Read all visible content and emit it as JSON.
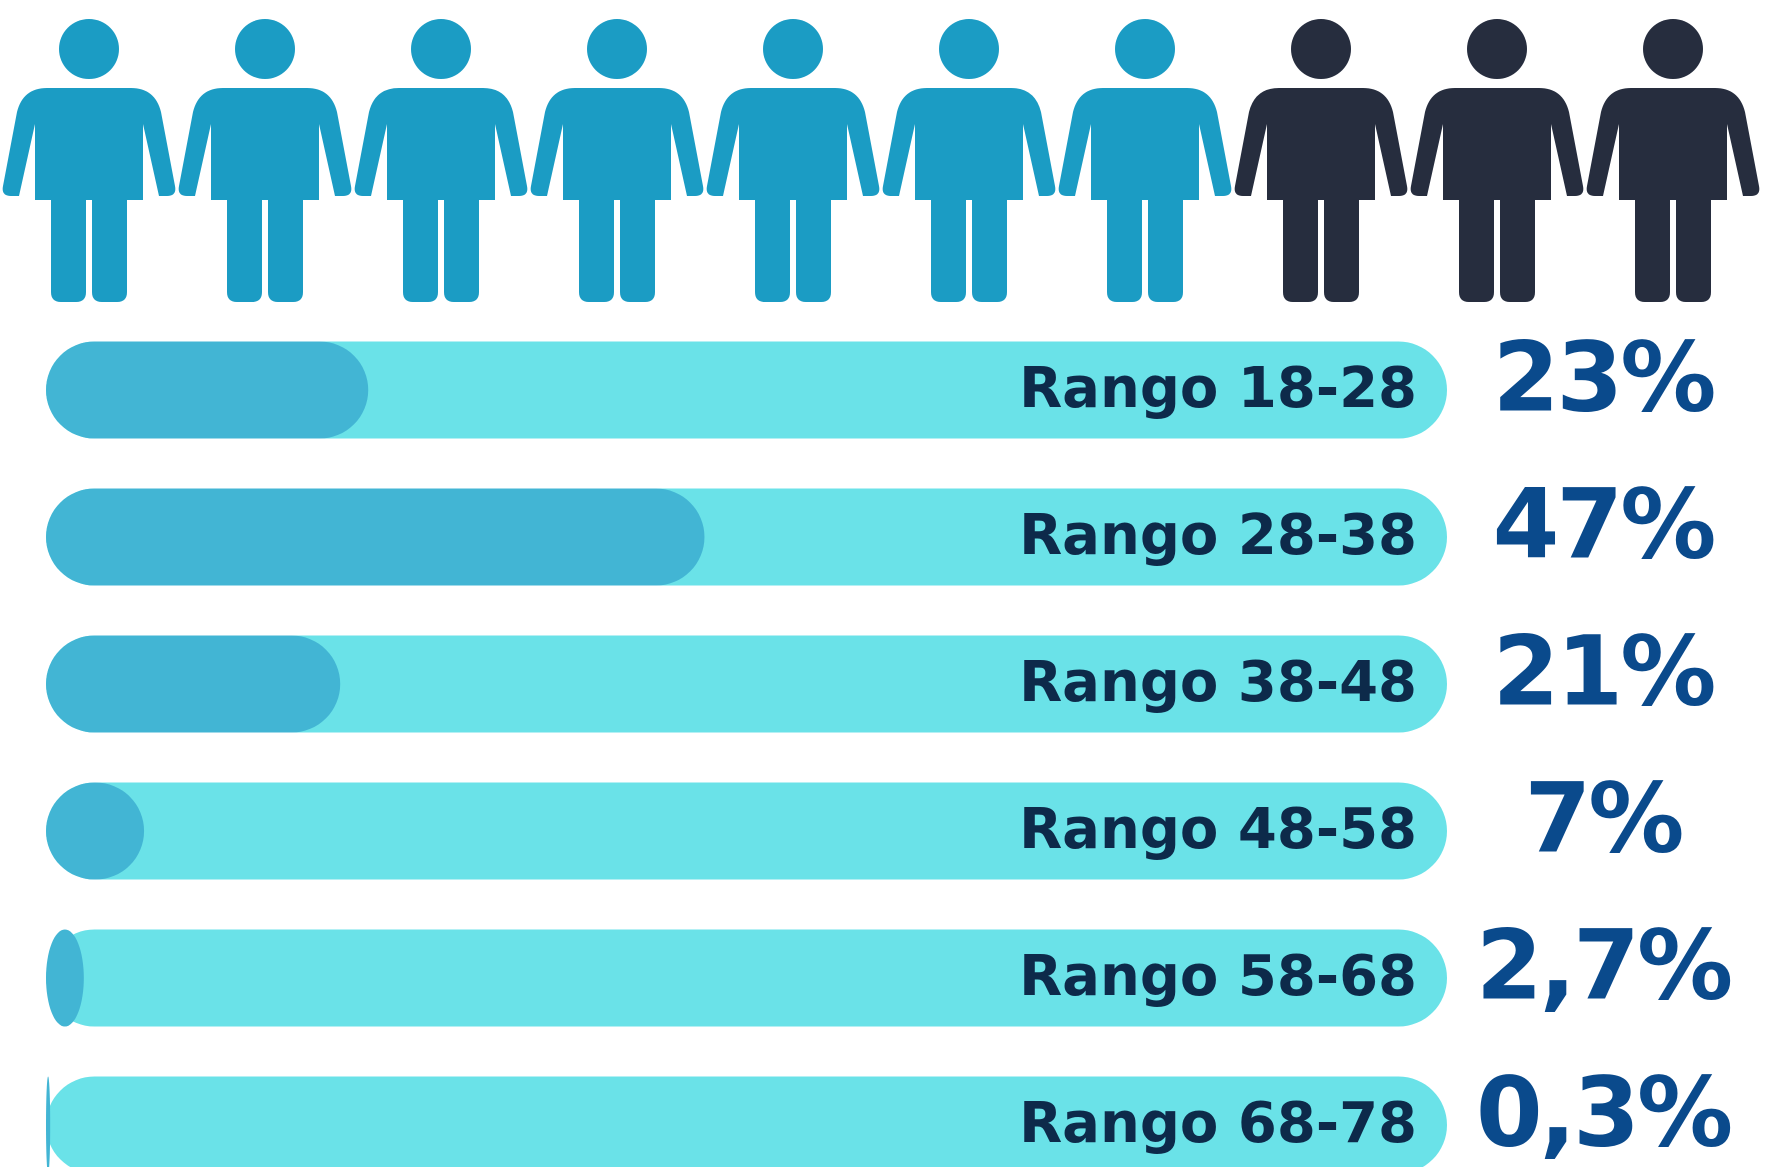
{
  "chart_data": {
    "type": "bar",
    "categories": [
      "Rango 18-28",
      "Rango 28-38",
      "Rango 38-48",
      "Rango 48-58",
      "Rango 58-68",
      "Rango 68-78"
    ],
    "values": [
      23,
      47,
      21,
      7,
      2.7,
      0.3
    ],
    "value_labels": [
      "23%",
      "47%",
      "21%",
      "7%",
      "2,7%",
      "0,3%"
    ],
    "xlim": [
      0,
      100
    ],
    "color": "#42b5d4",
    "track_color": "#6ae2e8"
  }
}
